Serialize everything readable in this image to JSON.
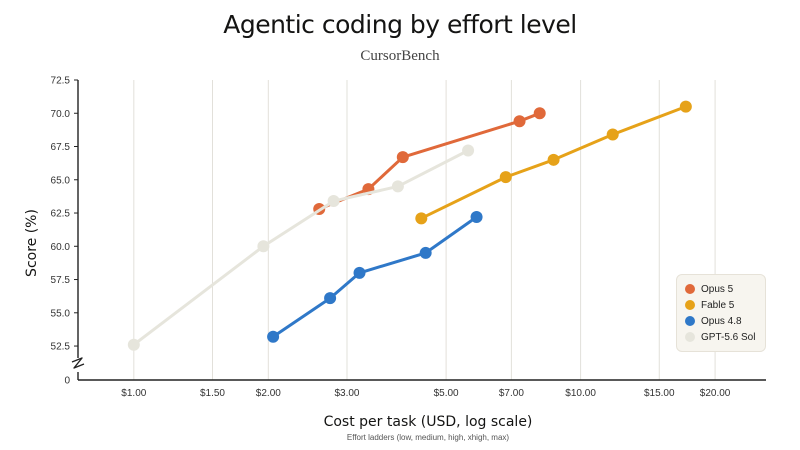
{
  "chart_data": {
    "type": "line",
    "title": "Agentic coding by effort level",
    "subtitle": "CursorBench",
    "xlabel": "Cost per task (USD, log scale)",
    "ylabel": "Score (%)",
    "note": "Effort ladders (low, medium, high, xhigh, max)",
    "x_scale": "log",
    "xlim": [
      0.75,
      26
    ],
    "ylim": [
      51,
      72.5
    ],
    "x_ticks": [
      {
        "value": 1.0,
        "label": "$1.00"
      },
      {
        "value": 1.5,
        "label": "$1.50"
      },
      {
        "value": 2.0,
        "label": "$2.00"
      },
      {
        "value": 3.0,
        "label": "$3.00"
      },
      {
        "value": 5.0,
        "label": "$5.00"
      },
      {
        "value": 7.0,
        "label": "$7.00"
      },
      {
        "value": 10.0,
        "label": "$10.00"
      },
      {
        "value": 15.0,
        "label": "$15.00"
      },
      {
        "value": 20.0,
        "label": "$20.00"
      }
    ],
    "y_ticks": [
      {
        "value": 52.5,
        "label": "52.5"
      },
      {
        "value": 55.0,
        "label": "55.0"
      },
      {
        "value": 57.5,
        "label": "57.5"
      },
      {
        "value": 60.0,
        "label": "60.0"
      },
      {
        "value": 62.5,
        "label": "62.5"
      },
      {
        "value": 65.0,
        "label": "65.0"
      },
      {
        "value": 67.5,
        "label": "67.5"
      },
      {
        "value": 70.0,
        "label": "70.0"
      },
      {
        "value": 72.5,
        "label": "72.5"
      }
    ],
    "y_zero_label": "0",
    "y_axis_break": true,
    "grid": "vertical",
    "legend_position": "bottom-right",
    "series": [
      {
        "name": "Opus 5",
        "color": "#e0693a",
        "points": [
          [
            2.6,
            62.8
          ],
          [
            3.35,
            64.3
          ],
          [
            4.0,
            66.7
          ],
          [
            7.3,
            69.4
          ],
          [
            8.1,
            70.0
          ]
        ]
      },
      {
        "name": "Fable 5",
        "color": "#e6a219",
        "points": [
          [
            4.4,
            62.1
          ],
          [
            6.8,
            65.2
          ],
          [
            8.7,
            66.5
          ],
          [
            11.8,
            68.4
          ],
          [
            17.2,
            70.5
          ]
        ]
      },
      {
        "name": "Opus 4.8",
        "color": "#2f78c8",
        "points": [
          [
            2.05,
            53.2
          ],
          [
            2.75,
            56.1
          ],
          [
            3.2,
            58.0
          ],
          [
            4.5,
            59.5
          ],
          [
            5.85,
            62.2
          ]
        ]
      },
      {
        "name": "GPT-5.6 Sol",
        "color": "#e6e5dc",
        "points": [
          [
            1.0,
            52.6
          ],
          [
            1.95,
            60.0
          ],
          [
            2.8,
            63.4
          ],
          [
            3.9,
            64.5
          ],
          [
            5.6,
            67.2
          ]
        ]
      }
    ]
  }
}
